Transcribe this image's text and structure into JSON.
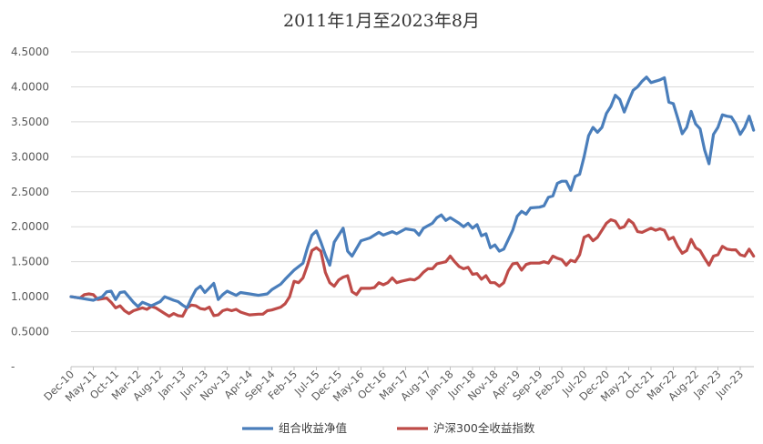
{
  "chart_data": {
    "type": "line",
    "title": "2011年1月至2023年8月",
    "xlabel": "",
    "ylabel": "",
    "ylim": [
      0,
      4.5
    ],
    "yticks": [
      "4.5000",
      "4.0000",
      "3.5000",
      "3.0000",
      "2.5000",
      "2.0000",
      "1.5000",
      "1.0000",
      "0.5000",
      "-"
    ],
    "grid": true,
    "legend_position": "bottom",
    "x_tick_labels": [
      "Dec-10",
      "May-11",
      "Oct-11",
      "Mar-12",
      "Aug-12",
      "Jan-13",
      "Jun-13",
      "Nov-13",
      "Apr-14",
      "Sep-14",
      "Feb-15",
      "Jul-15",
      "Dec-15",
      "May-16",
      "Oct-16",
      "Mar-17",
      "Aug-17",
      "Jan-18",
      "Jun-18",
      "Nov-18",
      "Apr-19",
      "Sep-19",
      "Feb-20",
      "Jul-20",
      "Dec-20",
      "May-21",
      "Oct-21",
      "Mar-22",
      "Aug-22",
      "Jan-23",
      "Jun-23"
    ],
    "x_start": "Dec-10",
    "x_end": "Aug-23",
    "series": [
      {
        "name": "组合收益净值",
        "color": "#4a7ebb",
        "points": [
          [
            "Dec-10",
            1.0
          ],
          [
            "Feb-11",
            0.98
          ],
          [
            "Mar-11",
            0.97
          ],
          [
            "May-11",
            0.95
          ],
          [
            "Jul-11",
            1.0
          ],
          [
            "Aug-11",
            1.07
          ],
          [
            "Sep-11",
            1.08
          ],
          [
            "Oct-11",
            0.96
          ],
          [
            "Nov-11",
            1.06
          ],
          [
            "Dec-11",
            1.07
          ],
          [
            "Feb-12",
            0.92
          ],
          [
            "Mar-12",
            0.86
          ],
          [
            "Apr-12",
            0.92
          ],
          [
            "Jun-12",
            0.87
          ],
          [
            "Jul-12",
            0.9
          ],
          [
            "Aug-12",
            0.93
          ],
          [
            "Sep-12",
            1.0
          ],
          [
            "Nov-12",
            0.95
          ],
          [
            "Dec-12",
            0.93
          ],
          [
            "Jan-13",
            0.88
          ],
          [
            "Feb-13",
            0.84
          ],
          [
            "Mar-13",
            0.98
          ],
          [
            "Apr-13",
            1.1
          ],
          [
            "May-13",
            1.15
          ],
          [
            "Jun-13",
            1.06
          ],
          [
            "Aug-13",
            1.19
          ],
          [
            "Sep-13",
            0.96
          ],
          [
            "Oct-13",
            1.03
          ],
          [
            "Nov-13",
            1.08
          ],
          [
            "Jan-14",
            1.02
          ],
          [
            "Feb-14",
            1.06
          ],
          [
            "Apr-14",
            1.04
          ],
          [
            "Jun-14",
            1.02
          ],
          [
            "Aug-14",
            1.04
          ],
          [
            "Sep-14",
            1.1
          ],
          [
            "Nov-14",
            1.18
          ],
          [
            "Dec-14",
            1.25
          ],
          [
            "Feb-15",
            1.38
          ],
          [
            "Apr-15",
            1.48
          ],
          [
            "May-15",
            1.7
          ],
          [
            "Jun-15",
            1.88
          ],
          [
            "Jul-15",
            1.94
          ],
          [
            "Aug-15",
            1.78
          ],
          [
            "Sep-15",
            1.6
          ],
          [
            "Oct-15",
            1.45
          ],
          [
            "Nov-15",
            1.78
          ],
          [
            "Dec-15",
            1.88
          ],
          [
            "Jan-16",
            1.98
          ],
          [
            "Feb-16",
            1.65
          ],
          [
            "Mar-16",
            1.58
          ],
          [
            "May-16",
            1.8
          ],
          [
            "Jul-16",
            1.84
          ],
          [
            "Sep-16",
            1.92
          ],
          [
            "Oct-16",
            1.88
          ],
          [
            "Dec-16",
            1.93
          ],
          [
            "Jan-17",
            1.9
          ],
          [
            "Mar-17",
            1.97
          ],
          [
            "May-17",
            1.95
          ],
          [
            "Jun-17",
            1.88
          ],
          [
            "Jul-17",
            1.98
          ],
          [
            "Sep-17",
            2.05
          ],
          [
            "Oct-17",
            2.13
          ],
          [
            "Nov-17",
            2.17
          ],
          [
            "Dec-17",
            2.09
          ],
          [
            "Jan-18",
            2.13
          ],
          [
            "Mar-18",
            2.05
          ],
          [
            "Apr-18",
            2.0
          ],
          [
            "May-18",
            2.05
          ],
          [
            "Jun-18",
            1.98
          ],
          [
            "Jul-18",
            2.03
          ],
          [
            "Aug-18",
            1.87
          ],
          [
            "Sep-18",
            1.9
          ],
          [
            "Oct-18",
            1.7
          ],
          [
            "Nov-18",
            1.74
          ],
          [
            "Dec-18",
            1.65
          ],
          [
            "Jan-19",
            1.68
          ],
          [
            "Mar-19",
            1.95
          ],
          [
            "Apr-19",
            2.15
          ],
          [
            "May-19",
            2.22
          ],
          [
            "Jun-19",
            2.18
          ],
          [
            "Jul-19",
            2.27
          ],
          [
            "Sep-19",
            2.28
          ],
          [
            "Oct-19",
            2.3
          ],
          [
            "Nov-19",
            2.42
          ],
          [
            "Dec-19",
            2.44
          ],
          [
            "Jan-20",
            2.62
          ],
          [
            "Feb-20",
            2.65
          ],
          [
            "Mar-20",
            2.65
          ],
          [
            "Apr-20",
            2.52
          ],
          [
            "May-20",
            2.72
          ],
          [
            "Jun-20",
            2.75
          ],
          [
            "Jul-20",
            3.0
          ],
          [
            "Aug-20",
            3.3
          ],
          [
            "Sep-20",
            3.42
          ],
          [
            "Oct-20",
            3.35
          ],
          [
            "Nov-20",
            3.42
          ],
          [
            "Dec-20",
            3.62
          ],
          [
            "Jan-21",
            3.72
          ],
          [
            "Feb-21",
            3.88
          ],
          [
            "Mar-21",
            3.82
          ],
          [
            "Apr-21",
            3.64
          ],
          [
            "May-21",
            3.8
          ],
          [
            "Jun-21",
            3.95
          ],
          [
            "Jul-21",
            4.0
          ],
          [
            "Aug-21",
            4.08
          ],
          [
            "Sep-21",
            4.14
          ],
          [
            "Oct-21",
            4.06
          ],
          [
            "Dec-21",
            4.1
          ],
          [
            "Jan-22",
            4.13
          ],
          [
            "Feb-22",
            3.78
          ],
          [
            "Mar-22",
            3.76
          ],
          [
            "Apr-22",
            3.55
          ],
          [
            "May-22",
            3.33
          ],
          [
            "Jun-22",
            3.42
          ],
          [
            "Jul-22",
            3.65
          ],
          [
            "Aug-22",
            3.47
          ],
          [
            "Sep-22",
            3.4
          ],
          [
            "Oct-22",
            3.1
          ],
          [
            "Nov-22",
            2.9
          ],
          [
            "Dec-22",
            3.32
          ],
          [
            "Jan-23",
            3.42
          ],
          [
            "Feb-23",
            3.6
          ],
          [
            "Mar-23",
            3.58
          ],
          [
            "Apr-23",
            3.57
          ],
          [
            "May-23",
            3.47
          ],
          [
            "Jun-23",
            3.32
          ],
          [
            "Jul-23",
            3.42
          ],
          [
            "Aug-23",
            3.58
          ],
          [
            "Sep-23",
            3.38
          ]
        ]
      },
      {
        "name": "沪深300全收益指数",
        "color": "#be4b48",
        "points": [
          [
            "Dec-10",
            1.0
          ],
          [
            "Feb-11",
            0.98
          ],
          [
            "Mar-11",
            1.03
          ],
          [
            "Apr-11",
            1.04
          ],
          [
            "May-11",
            1.03
          ],
          [
            "Jun-11",
            0.96
          ],
          [
            "Aug-11",
            0.98
          ],
          [
            "Sep-11",
            0.92
          ],
          [
            "Oct-11",
            0.84
          ],
          [
            "Nov-11",
            0.87
          ],
          [
            "Dec-11",
            0.8
          ],
          [
            "Jan-12",
            0.76
          ],
          [
            "Feb-12",
            0.8
          ],
          [
            "Apr-12",
            0.84
          ],
          [
            "May-12",
            0.82
          ],
          [
            "Jun-12",
            0.86
          ],
          [
            "Jul-12",
            0.84
          ],
          [
            "Aug-12",
            0.8
          ],
          [
            "Sep-12",
            0.76
          ],
          [
            "Oct-12",
            0.72
          ],
          [
            "Nov-12",
            0.76
          ],
          [
            "Dec-12",
            0.73
          ],
          [
            "Jan-13",
            0.72
          ],
          [
            "Feb-13",
            0.84
          ],
          [
            "Mar-13",
            0.88
          ],
          [
            "Apr-13",
            0.87
          ],
          [
            "May-13",
            0.83
          ],
          [
            "Jun-13",
            0.82
          ],
          [
            "Jul-13",
            0.85
          ],
          [
            "Aug-13",
            0.73
          ],
          [
            "Sep-13",
            0.74
          ],
          [
            "Oct-13",
            0.8
          ],
          [
            "Nov-13",
            0.82
          ],
          [
            "Dec-13",
            0.8
          ],
          [
            "Jan-14",
            0.82
          ],
          [
            "Feb-14",
            0.78
          ],
          [
            "Mar-14",
            0.76
          ],
          [
            "Apr-14",
            0.74
          ],
          [
            "Jun-14",
            0.75
          ],
          [
            "Jul-14",
            0.75
          ],
          [
            "Aug-14",
            0.8
          ],
          [
            "Sep-14",
            0.81
          ],
          [
            "Nov-14",
            0.85
          ],
          [
            "Dec-14",
            0.9
          ],
          [
            "Jan-15",
            1.0
          ],
          [
            "Feb-15",
            1.22
          ],
          [
            "Mar-15",
            1.2
          ],
          [
            "Apr-15",
            1.27
          ],
          [
            "May-15",
            1.45
          ],
          [
            "Jun-15",
            1.66
          ],
          [
            "Jul-15",
            1.7
          ],
          [
            "Aug-15",
            1.65
          ],
          [
            "Sep-15",
            1.35
          ],
          [
            "Oct-15",
            1.2
          ],
          [
            "Nov-15",
            1.15
          ],
          [
            "Dec-15",
            1.24
          ],
          [
            "Jan-16",
            1.28
          ],
          [
            "Feb-16",
            1.3
          ],
          [
            "Mar-16",
            1.07
          ],
          [
            "Apr-16",
            1.03
          ],
          [
            "May-16",
            1.12
          ],
          [
            "Jul-16",
            1.12
          ],
          [
            "Aug-16",
            1.13
          ],
          [
            "Sep-16",
            1.2
          ],
          [
            "Oct-16",
            1.17
          ],
          [
            "Nov-16",
            1.2
          ],
          [
            "Dec-16",
            1.27
          ],
          [
            "Jan-17",
            1.2
          ],
          [
            "Feb-17",
            1.22
          ],
          [
            "Apr-17",
            1.25
          ],
          [
            "May-17",
            1.24
          ],
          [
            "Jun-17",
            1.28
          ],
          [
            "Jul-17",
            1.35
          ],
          [
            "Aug-17",
            1.4
          ],
          [
            "Sep-17",
            1.4
          ],
          [
            "Oct-17",
            1.47
          ],
          [
            "Dec-17",
            1.5
          ],
          [
            "Jan-18",
            1.58
          ],
          [
            "Feb-18",
            1.5
          ],
          [
            "Mar-18",
            1.43
          ],
          [
            "Apr-18",
            1.4
          ],
          [
            "May-18",
            1.42
          ],
          [
            "Jun-18",
            1.32
          ],
          [
            "Jul-18",
            1.33
          ],
          [
            "Aug-18",
            1.25
          ],
          [
            "Sep-18",
            1.3
          ],
          [
            "Oct-18",
            1.2
          ],
          [
            "Nov-18",
            1.2
          ],
          [
            "Dec-18",
            1.15
          ],
          [
            "Jan-19",
            1.2
          ],
          [
            "Feb-19",
            1.37
          ],
          [
            "Mar-19",
            1.47
          ],
          [
            "Apr-19",
            1.48
          ],
          [
            "May-19",
            1.38
          ],
          [
            "Jun-19",
            1.46
          ],
          [
            "Jul-19",
            1.48
          ],
          [
            "Sep-19",
            1.48
          ],
          [
            "Oct-19",
            1.5
          ],
          [
            "Nov-19",
            1.48
          ],
          [
            "Dec-19",
            1.58
          ],
          [
            "Jan-20",
            1.55
          ],
          [
            "Feb-20",
            1.53
          ],
          [
            "Mar-20",
            1.45
          ],
          [
            "Apr-20",
            1.52
          ],
          [
            "May-20",
            1.5
          ],
          [
            "Jun-20",
            1.6
          ],
          [
            "Jul-20",
            1.85
          ],
          [
            "Aug-20",
            1.88
          ],
          [
            "Sep-20",
            1.8
          ],
          [
            "Oct-20",
            1.85
          ],
          [
            "Nov-20",
            1.95
          ],
          [
            "Dec-20",
            2.05
          ],
          [
            "Jan-21",
            2.1
          ],
          [
            "Feb-21",
            2.08
          ],
          [
            "Mar-21",
            1.98
          ],
          [
            "Apr-21",
            2.0
          ],
          [
            "May-21",
            2.1
          ],
          [
            "Jun-21",
            2.05
          ],
          [
            "Jul-21",
            1.93
          ],
          [
            "Aug-21",
            1.92
          ],
          [
            "Sep-21",
            1.95
          ],
          [
            "Oct-21",
            1.98
          ],
          [
            "Nov-21",
            1.95
          ],
          [
            "Dec-21",
            1.97
          ],
          [
            "Jan-22",
            1.95
          ],
          [
            "Feb-22",
            1.82
          ],
          [
            "Mar-22",
            1.85
          ],
          [
            "Apr-22",
            1.72
          ],
          [
            "May-22",
            1.62
          ],
          [
            "Jun-22",
            1.66
          ],
          [
            "Jul-22",
            1.82
          ],
          [
            "Aug-22",
            1.7
          ],
          [
            "Sep-22",
            1.66
          ],
          [
            "Oct-22",
            1.55
          ],
          [
            "Nov-22",
            1.45
          ],
          [
            "Dec-22",
            1.58
          ],
          [
            "Jan-23",
            1.6
          ],
          [
            "Feb-23",
            1.72
          ],
          [
            "Mar-23",
            1.68
          ],
          [
            "Apr-23",
            1.67
          ],
          [
            "May-23",
            1.67
          ],
          [
            "Jun-23",
            1.6
          ],
          [
            "Jul-23",
            1.58
          ],
          [
            "Aug-23",
            1.68
          ],
          [
            "Sep-23",
            1.58
          ]
        ]
      }
    ]
  }
}
